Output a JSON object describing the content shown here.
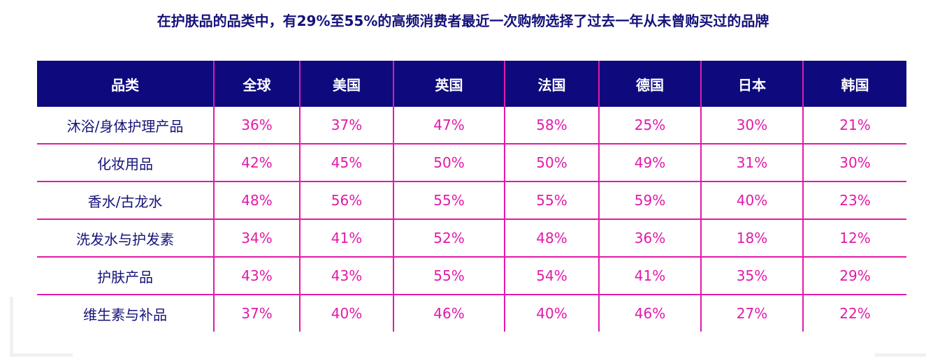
{
  "chart_data": {
    "type": "table",
    "title": "在护肤品的品类中，有29%至55%的高频消费者最近一次购物选择了过去一年从未曾购买过的品牌",
    "columns": [
      "品类",
      "全球",
      "美国",
      "英国",
      "法国",
      "德国",
      "日本",
      "韩国"
    ],
    "rows": [
      {
        "category": "沐浴/身体护理产品",
        "values": [
          "36%",
          "37%",
          "47%",
          "58%",
          "25%",
          "30%",
          "21%"
        ]
      },
      {
        "category": "化妆用品",
        "values": [
          "42%",
          "45%",
          "50%",
          "50%",
          "49%",
          "31%",
          "30%"
        ]
      },
      {
        "category": "香水/古龙水",
        "values": [
          "48%",
          "56%",
          "55%",
          "55%",
          "59%",
          "40%",
          "23%"
        ]
      },
      {
        "category": "洗发水与护发素",
        "values": [
          "34%",
          "41%",
          "52%",
          "48%",
          "36%",
          "18%",
          "12%"
        ]
      },
      {
        "category": "护肤产品",
        "values": [
          "43%",
          "43%",
          "55%",
          "54%",
          "41%",
          "35%",
          "29%"
        ]
      },
      {
        "category": "维生素与补品",
        "values": [
          "37%",
          "40%",
          "46%",
          "40%",
          "46%",
          "27%",
          "22%"
        ]
      }
    ],
    "colors": {
      "header_bg": "#0e0a7e",
      "header_text": "#ffffff",
      "value_text": "#e21aa9",
      "category_text": "#15127a",
      "grid_line": "#e21aa9"
    }
  }
}
